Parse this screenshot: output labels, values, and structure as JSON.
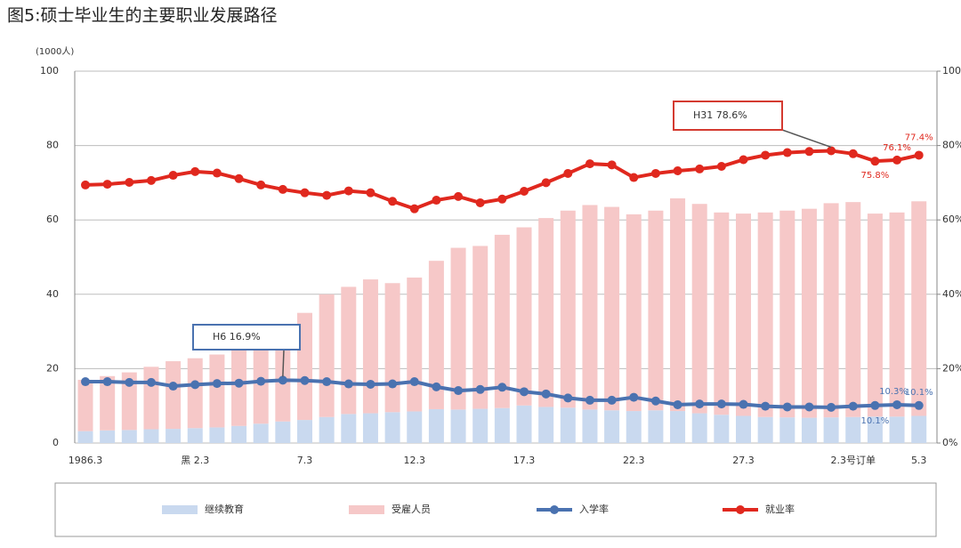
{
  "chart_data": {
    "type": "bar",
    "title": "图5:硕士毕业生的主要职业发展路径",
    "y_label": "(1000人)",
    "stacked": true,
    "grid": true,
    "categories": [
      "1986.3",
      null,
      null,
      null,
      null,
      "黑 2.3",
      null,
      null,
      null,
      null,
      "7.3",
      null,
      null,
      null,
      null,
      "12.3",
      null,
      null,
      null,
      null,
      "17.3",
      null,
      null,
      null,
      null,
      "22.3",
      null,
      null,
      null,
      null,
      "27.3",
      null,
      null,
      null,
      null,
      "2.3号订单",
      null,
      null,
      "5.3"
    ],
    "ylim": [
      0,
      100
    ],
    "yticks": [
      0,
      20,
      40,
      60,
      80,
      100
    ],
    "y2lim": [
      0,
      100
    ],
    "y2ticks": [
      {
        "value": 0,
        "label": "0%"
      },
      {
        "value": 20,
        "label": "20%"
      },
      {
        "value": 40,
        "label": "40%"
      },
      {
        "value": 60,
        "label": "60%"
      },
      {
        "value": 80,
        "label": "80%"
      },
      {
        "value": 100,
        "label": "100%"
      }
    ],
    "series": [
      {
        "name": "继续教育",
        "type": "bar",
        "color": "#c9d9ef",
        "values": [
          3.2,
          3.4,
          3.5,
          3.7,
          3.8,
          4.0,
          4.2,
          4.6,
          5.2,
          5.8,
          6.2,
          7.0,
          7.8,
          8.0,
          8.3,
          8.5,
          9.1,
          9.0,
          9.2,
          9.4,
          10.1,
          9.7,
          9.5,
          9.0,
          8.8,
          8.6,
          8.8,
          8.6,
          8.0,
          7.6,
          7.3,
          7.0,
          6.9,
          6.8,
          6.9,
          7.0,
          7.1,
          7.1,
          7.3
        ]
      },
      {
        "name": "受雇人员",
        "type": "bar",
        "color": "#f6c8c8",
        "values": [
          13.8,
          14.6,
          15.5,
          16.8,
          18.2,
          18.8,
          19.6,
          20.4,
          21.3,
          21.2,
          28.8,
          33.0,
          34.2,
          36.0,
          34.7,
          36.0,
          39.9,
          43.5,
          43.8,
          46.6,
          47.9,
          50.8,
          53.0,
          55.0,
          54.7,
          52.9,
          53.7,
          57.2,
          56.3,
          54.4,
          54.4,
          55.0,
          55.6,
          56.2,
          57.6,
          57.8,
          54.6,
          54.9,
          57.7
        ]
      },
      {
        "name": "入学率",
        "type": "line",
        "axis": "y2",
        "color": "#4a72b0",
        "values": [
          16.5,
          16.5,
          16.3,
          16.3,
          15.3,
          15.7,
          16.0,
          16.1,
          16.6,
          16.9,
          16.8,
          16.5,
          15.9,
          15.8,
          15.9,
          16.5,
          15.1,
          14.1,
          14.4,
          15.0,
          13.8,
          13.2,
          12.1,
          11.5,
          11.5,
          12.3,
          11.3,
          10.3,
          10.5,
          10.5,
          10.4,
          9.9,
          9.7,
          9.7,
          9.6,
          9.9,
          10.1,
          10.3,
          10.1
        ],
        "value_labels": [
          null,
          null,
          null,
          null,
          null,
          null,
          null,
          null,
          null,
          null,
          null,
          null,
          null,
          null,
          null,
          null,
          null,
          null,
          null,
          null,
          null,
          null,
          null,
          null,
          null,
          null,
          null,
          null,
          null,
          null,
          null,
          null,
          null,
          null,
          null,
          null,
          "10.1%",
          "10.3%",
          "10.1%"
        ]
      },
      {
        "name": "就业率",
        "type": "line",
        "axis": "y2",
        "color": "#e0281e",
        "values": [
          69.4,
          69.6,
          70.1,
          70.6,
          72.0,
          73.0,
          72.6,
          71.1,
          69.4,
          68.2,
          67.3,
          66.6,
          67.8,
          67.3,
          65.0,
          63.0,
          65.3,
          66.3,
          64.6,
          65.6,
          67.7,
          70.0,
          72.5,
          75.1,
          74.8,
          71.4,
          72.5,
          73.2,
          73.7,
          74.4,
          76.2,
          77.4,
          78.1,
          78.4,
          78.6,
          77.8,
          75.8,
          76.1,
          77.4
        ],
        "value_labels": [
          null,
          null,
          null,
          null,
          null,
          null,
          null,
          null,
          null,
          null,
          null,
          null,
          null,
          null,
          null,
          null,
          null,
          null,
          null,
          null,
          null,
          null,
          null,
          null,
          null,
          null,
          null,
          null,
          null,
          null,
          null,
          null,
          null,
          null,
          null,
          null,
          "75.8%",
          "76.1%",
          "77.4%"
        ]
      }
    ],
    "annotations": [
      {
        "text": "H6 16.9%"
      },
      {
        "text": "H31 78.6%"
      }
    ]
  }
}
